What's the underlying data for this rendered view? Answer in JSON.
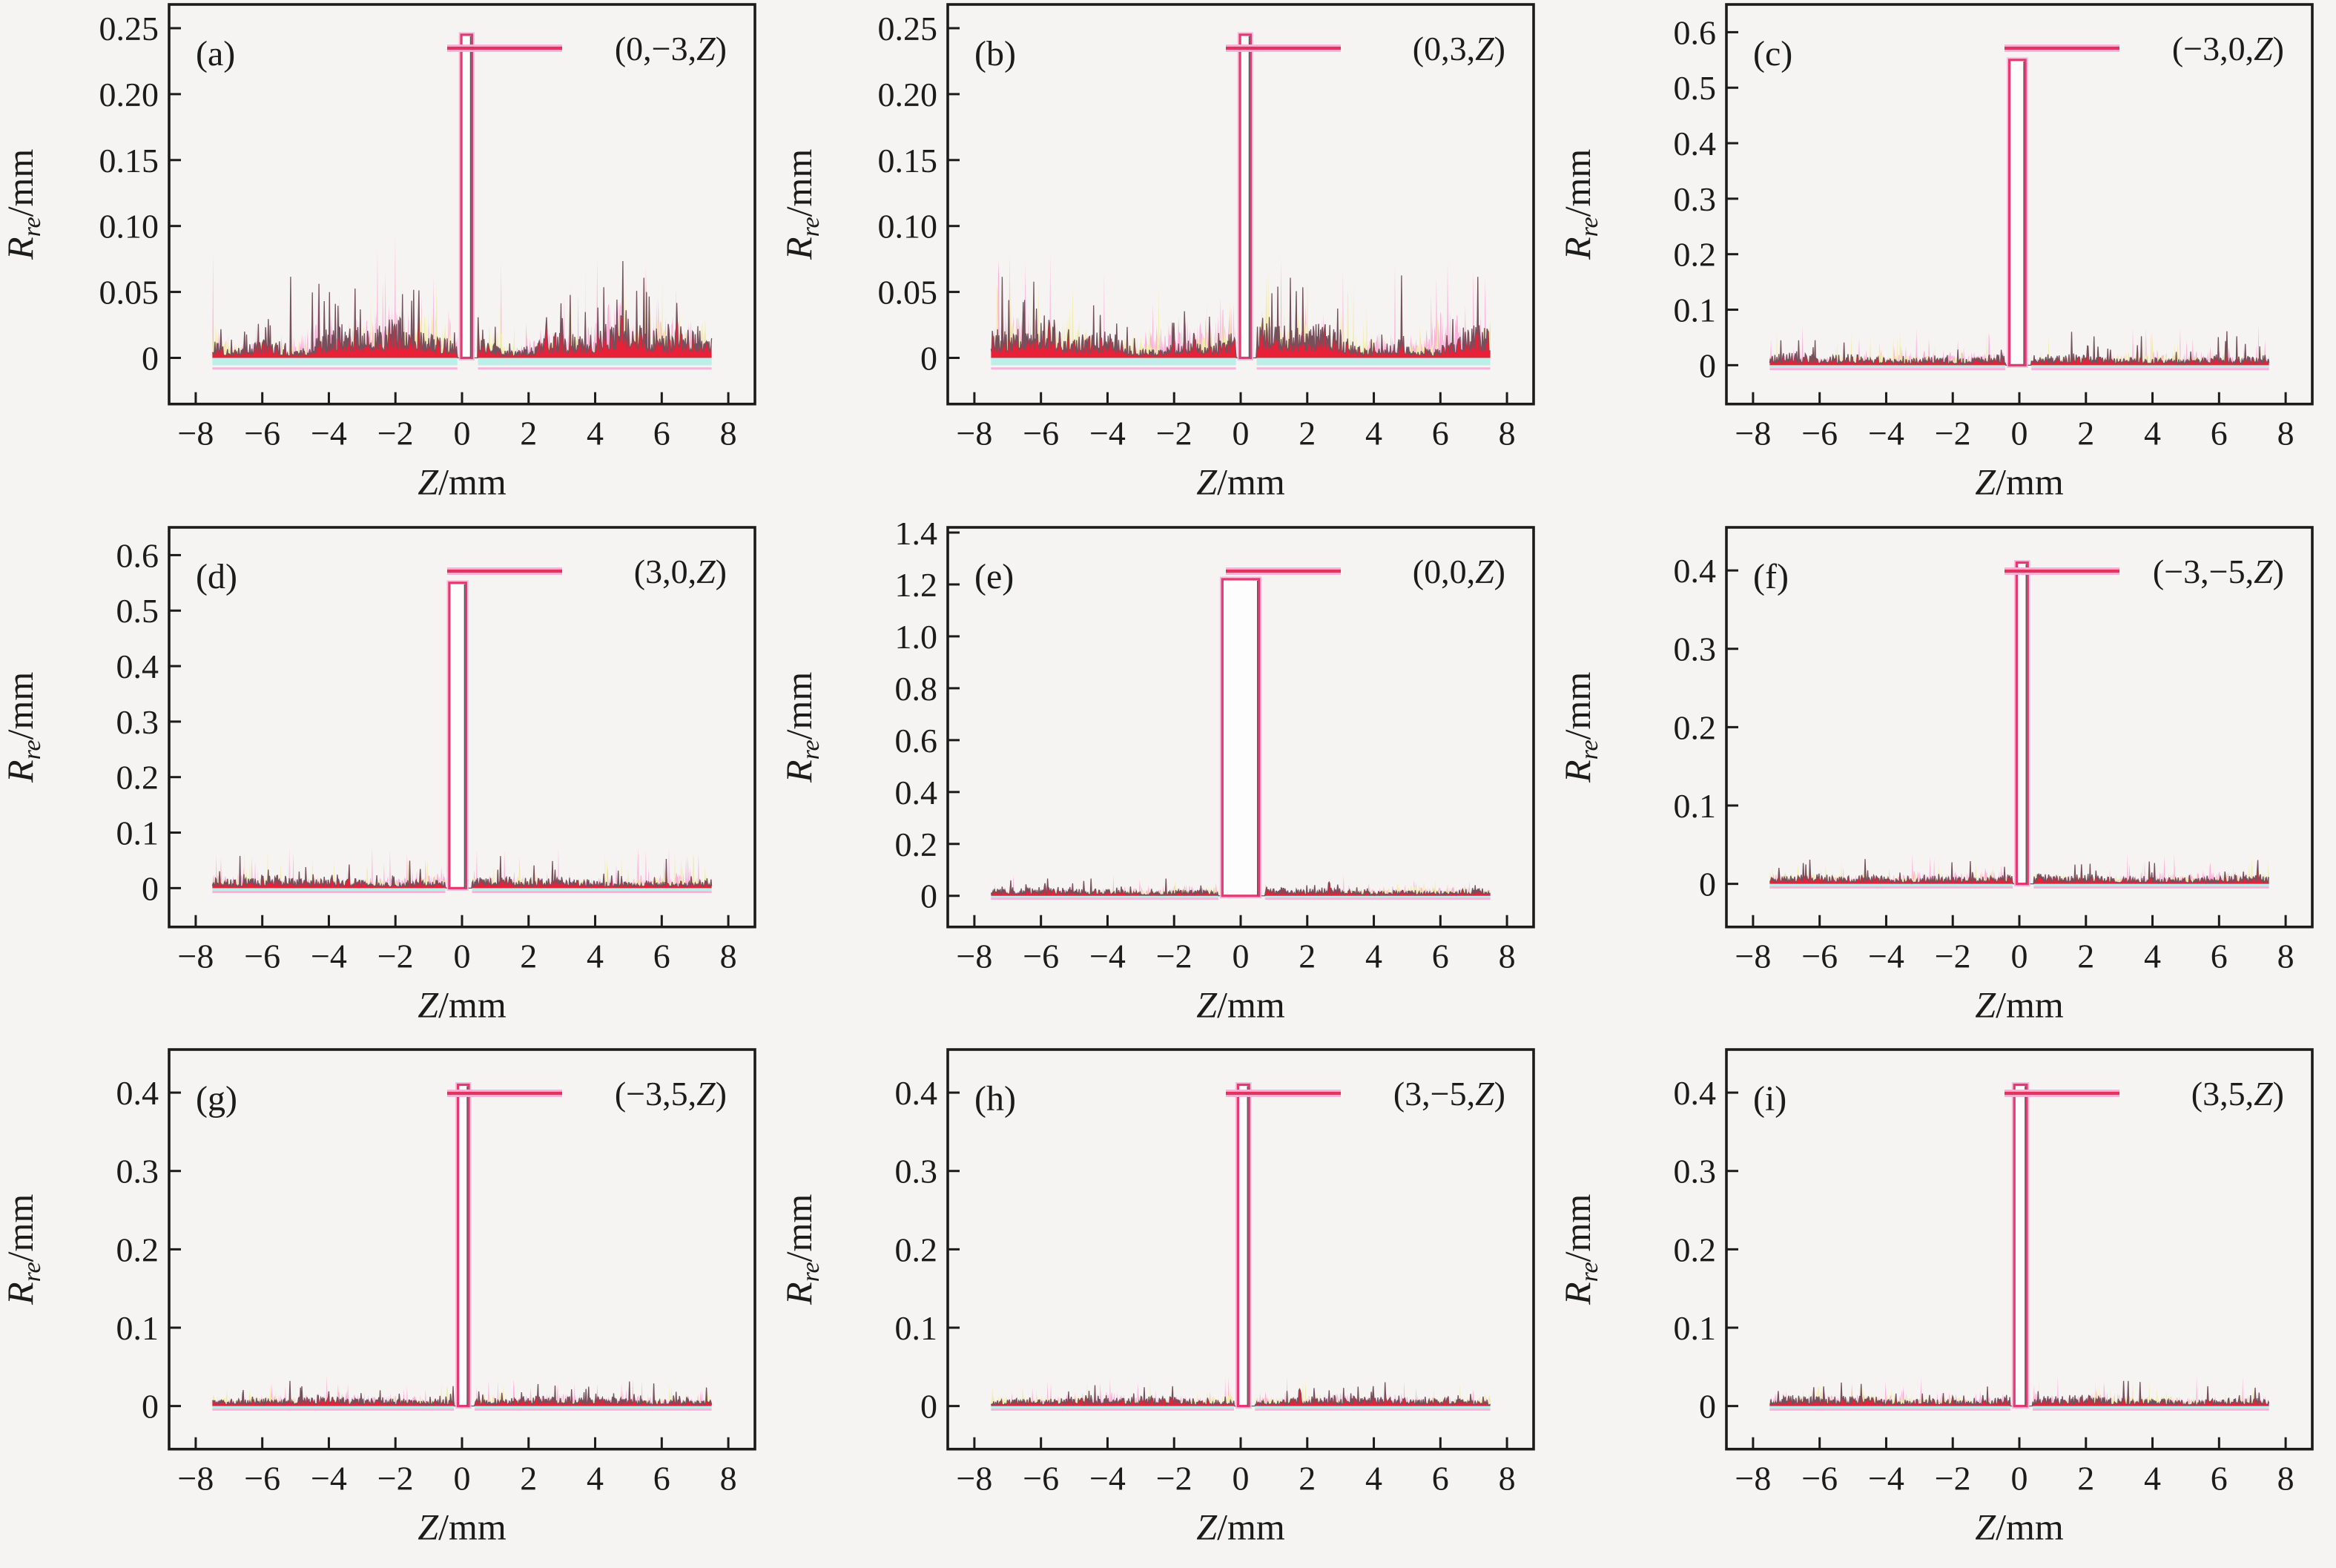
{
  "figure": {
    "background_color": "#f5f4f2",
    "axis_color": "#1b1b1b",
    "xlabel_var": "Z",
    "xlabel_unit": "/mm",
    "ylabel_var": "R",
    "ylabel_sub": "re",
    "ylabel_unit": "/mm",
    "x_ticks": [
      -8,
      -6,
      -4,
      -2,
      0,
      2,
      4,
      6,
      8
    ],
    "x_tick_labels": [
      "−8",
      "−6",
      "−4",
      "−2",
      "0",
      "2",
      "4",
      "6",
      "8"
    ],
    "x_range": [
      -8.8,
      8.8
    ],
    "data_x_range": [
      -7.5,
      7.5
    ],
    "legend_position": "top-right",
    "grid": "off",
    "colors": {
      "noise_red": "#e82138",
      "noise_dark_tips": "#74505c",
      "noise_pink": "#fdb0d8",
      "noise_yellow": "#f1ebae",
      "noise_cyan": "#bdeee9",
      "spike_stroke": "#e5396f",
      "spike_glow": "#fdb0d8",
      "spike_fill": "#fdfdfd",
      "legend_line": "#e03360"
    }
  },
  "chart_data": [
    {
      "type": "line",
      "panel_letter": "(a)",
      "legend": "(0,−3,Z)",
      "xlabel": "Z/mm",
      "ylabel": "Rre/mm",
      "ylim": [
        -0.035,
        0.268
      ],
      "yticks": [
        0,
        0.05,
        0.1,
        0.15,
        0.2,
        0.25
      ],
      "ytick_labels": [
        "0",
        "0.05",
        "0.10",
        "0.15",
        "0.20",
        "0.25"
      ],
      "peak_height": 0.245,
      "peak_x": [
        -0.02,
        0.3
      ],
      "noise_band": 0.016,
      "noise_tip": 0.052,
      "noise_mod": 0.55,
      "seed": 101
    },
    {
      "type": "line",
      "panel_letter": "(b)",
      "legend": "(0,3,Z)",
      "xlabel": "Z/mm",
      "ylabel": "Rre/mm",
      "ylim": [
        -0.035,
        0.268
      ],
      "yticks": [
        0,
        0.05,
        0.1,
        0.15,
        0.2,
        0.25
      ],
      "ytick_labels": [
        "0",
        "0.05",
        "0.10",
        "0.15",
        "0.20",
        "0.25"
      ],
      "peak_height": 0.245,
      "peak_x": [
        -0.02,
        0.3
      ],
      "noise_band": 0.016,
      "noise_tip": 0.052,
      "noise_mod": 0.55,
      "seed": 102
    },
    {
      "type": "line",
      "panel_letter": "(c)",
      "legend": "(−3,0,Z)",
      "xlabel": "Z/mm",
      "ylabel": "Rre/mm",
      "ylim": [
        -0.07,
        0.65
      ],
      "yticks": [
        0,
        0.1,
        0.2,
        0.3,
        0.4,
        0.5,
        0.6
      ],
      "ytick_labels": [
        "0",
        "0.1",
        "0.2",
        "0.3",
        "0.4",
        "0.5",
        "0.6"
      ],
      "peak_height": 0.55,
      "peak_x": [
        -0.3,
        0.18
      ],
      "noise_band": 0.014,
      "noise_tip": 0.05,
      "noise_mod": 0.25,
      "seed": 103
    },
    {
      "type": "line",
      "panel_letter": "(d)",
      "legend": "(3,0,Z)",
      "xlabel": "Z/mm",
      "ylabel": "Rre/mm",
      "ylim": [
        -0.07,
        0.65
      ],
      "yticks": [
        0,
        0.1,
        0.2,
        0.3,
        0.4,
        0.5,
        0.6
      ],
      "ytick_labels": [
        "0",
        "0.1",
        "0.2",
        "0.3",
        "0.4",
        "0.5",
        "0.6"
      ],
      "peak_height": 0.55,
      "peak_x": [
        -0.38,
        0.12
      ],
      "noise_band": 0.014,
      "noise_tip": 0.05,
      "noise_mod": 0.25,
      "seed": 104
    },
    {
      "type": "line",
      "panel_letter": "(e)",
      "legend": "(0,0,Z)",
      "xlabel": "Z/mm",
      "ylabel": "Rre/mm",
      "ylim": [
        -0.12,
        1.42
      ],
      "yticks": [
        0,
        0.2,
        0.4,
        0.6,
        0.8,
        1.0,
        1.2,
        1.4
      ],
      "ytick_labels": [
        "0",
        "0.2",
        "0.4",
        "0.6",
        "0.8",
        "1.0",
        "1.2",
        "1.4"
      ],
      "peak_height": 1.22,
      "peak_x": [
        -0.55,
        0.55
      ],
      "noise_band": 0.022,
      "noise_tip": 0.055,
      "noise_mod": 0.25,
      "seed": 105
    },
    {
      "type": "line",
      "panel_letter": "(f)",
      "legend": "(−3,−5,Z)",
      "xlabel": "Z/mm",
      "ylabel": "Rre/mm",
      "ylim": [
        -0.055,
        0.455
      ],
      "yticks": [
        0,
        0.1,
        0.2,
        0.3,
        0.4
      ],
      "ytick_labels": [
        "0",
        "0.1",
        "0.2",
        "0.3",
        "0.4"
      ],
      "peak_height": 0.41,
      "peak_x": [
        -0.08,
        0.25
      ],
      "noise_band": 0.009,
      "noise_tip": 0.026,
      "noise_mod": 0.25,
      "seed": 106
    },
    {
      "type": "line",
      "panel_letter": "(g)",
      "legend": "(−3,5,Z)",
      "xlabel": "Z/mm",
      "ylabel": "Rre/mm",
      "ylim": [
        -0.055,
        0.455
      ],
      "yticks": [
        0,
        0.1,
        0.2,
        0.3,
        0.4
      ],
      "ytick_labels": [
        "0",
        "0.1",
        "0.2",
        "0.3",
        "0.4"
      ],
      "peak_height": 0.41,
      "peak_x": [
        -0.12,
        0.2
      ],
      "noise_band": 0.009,
      "noise_tip": 0.026,
      "noise_mod": 0.25,
      "seed": 107
    },
    {
      "type": "line",
      "panel_letter": "(h)",
      "legend": "(3,−5,Z)",
      "xlabel": "Z/mm",
      "ylabel": "Rre/mm",
      "ylim": [
        -0.055,
        0.455
      ],
      "yticks": [
        0,
        0.1,
        0.2,
        0.3,
        0.4
      ],
      "ytick_labels": [
        "0",
        "0.1",
        "0.2",
        "0.3",
        "0.4"
      ],
      "peak_height": 0.41,
      "peak_x": [
        -0.08,
        0.25
      ],
      "noise_band": 0.009,
      "noise_tip": 0.026,
      "noise_mod": 0.25,
      "seed": 108
    },
    {
      "type": "line",
      "panel_letter": "(i)",
      "legend": "(3,5,Z)",
      "xlabel": "Z/mm",
      "ylabel": "Rre/mm",
      "ylim": [
        -0.055,
        0.455
      ],
      "yticks": [
        0,
        0.1,
        0.2,
        0.3,
        0.4
      ],
      "ytick_labels": [
        "0",
        "0.1",
        "0.2",
        "0.3",
        "0.4"
      ],
      "peak_height": 0.41,
      "peak_x": [
        -0.15,
        0.22
      ],
      "noise_band": 0.009,
      "noise_tip": 0.026,
      "noise_mod": 0.25,
      "seed": 109
    }
  ]
}
